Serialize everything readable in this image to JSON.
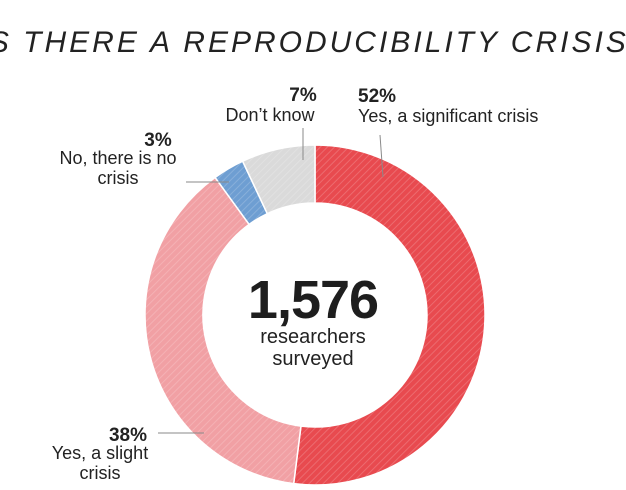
{
  "colors": {
    "significant": "#e84a4f",
    "slight": "#f1a0a4",
    "no_crisis": "#6e9ed2",
    "dont_know": "#dadada",
    "leader": "#8a8a8a"
  },
  "chart_data": {
    "type": "pie",
    "title": "IS THERE A REPRODUCIBILITY CRISIS?",
    "center": {
      "value": "1,576",
      "line1": "researchers",
      "line2": "surveyed"
    },
    "slices": [
      {
        "pct": "52%",
        "value": 52,
        "label_lines": [
          "Yes, a significant crisis"
        ],
        "color": "#e84a4f"
      },
      {
        "pct": "38%",
        "value": 38,
        "label_lines": [
          "Yes, a slight",
          "crisis"
        ],
        "color": "#f1a0a4"
      },
      {
        "pct": "3%",
        "value": 3,
        "label_lines": [
          "No, there is no",
          "crisis"
        ],
        "color": "#6e9ed2"
      },
      {
        "pct": "7%",
        "value": 7,
        "label_lines": [
          "Don’t know"
        ],
        "color": "#dadada"
      }
    ]
  }
}
